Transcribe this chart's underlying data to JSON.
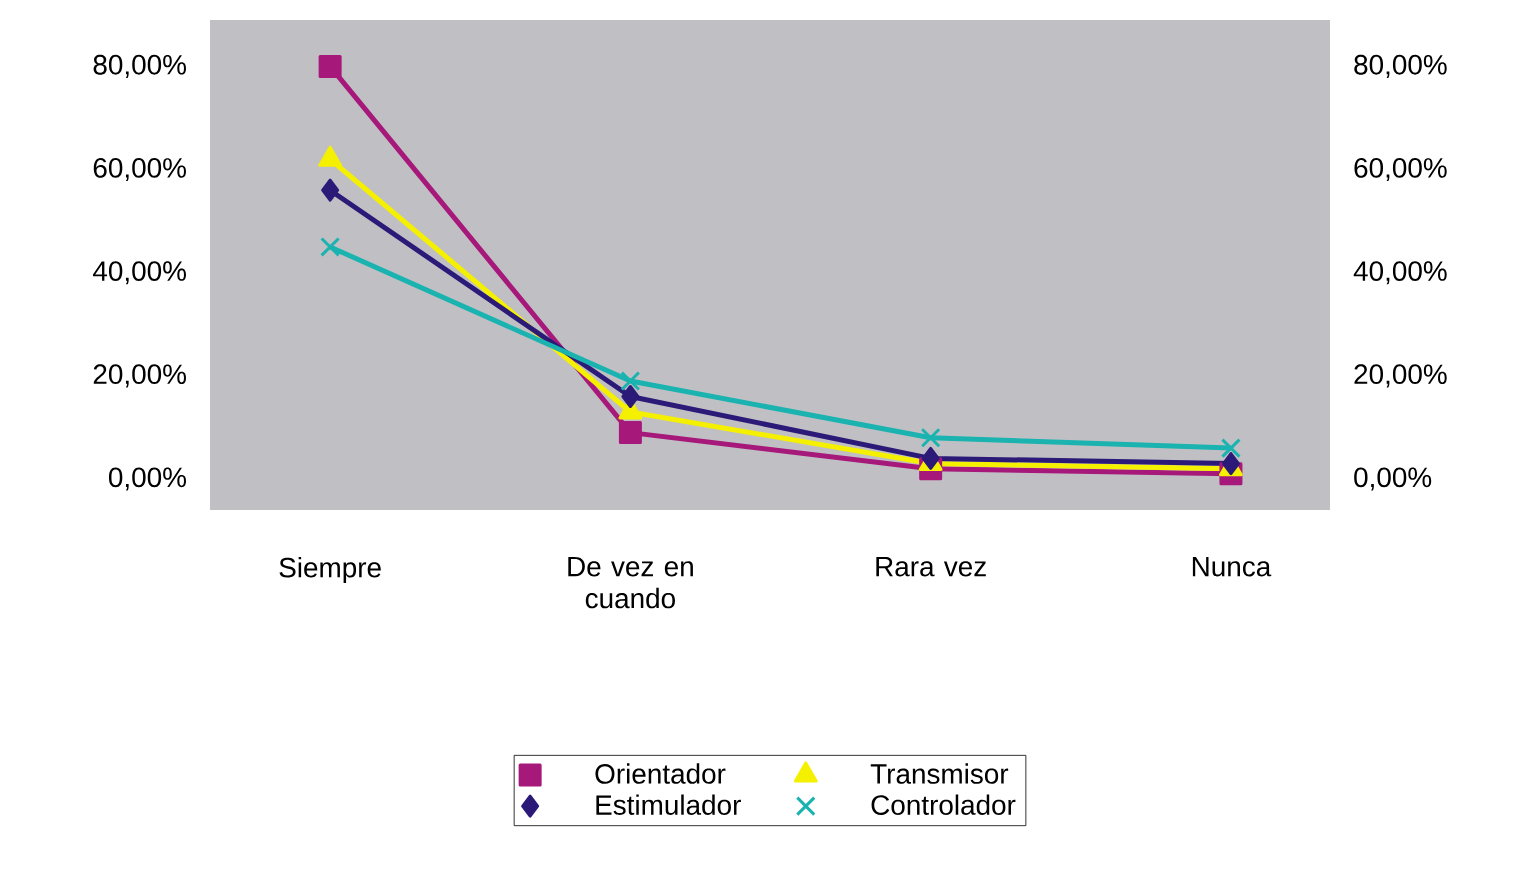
{
  "chart_data": {
    "type": "line",
    "categories": [
      "Siempre",
      "De vez en cuando",
      "Rara vez",
      "Nunca"
    ],
    "series": [
      {
        "name": "Orientador",
        "color": "#a6197a",
        "marker": "square",
        "values": [
          80,
          9,
          2,
          1
        ]
      },
      {
        "name": "Transmisor",
        "color": "#f5f000",
        "marker": "triangle",
        "values": [
          62,
          13,
          3,
          2
        ]
      },
      {
        "name": "Estimulador",
        "color": "#2b1a78",
        "marker": "diamond",
        "values": [
          56,
          16,
          4,
          3
        ]
      },
      {
        "name": "Controlador",
        "color": "#1ab3b0",
        "marker": "cross",
        "values": [
          45,
          19,
          8,
          6
        ]
      }
    ],
    "ylim": [
      -6,
      89
    ],
    "yticks": [
      {
        "value": 0,
        "label": "0,00%"
      },
      {
        "value": 20,
        "label": "20,00%"
      },
      {
        "value": 40,
        "label": "40,00%"
      },
      {
        "value": 60,
        "label": "60,00%"
      },
      {
        "value": 80,
        "label": "80,00%"
      }
    ],
    "y2lim": [
      -6,
      89
    ],
    "y2ticks": [
      {
        "value": 0,
        "label": "0,00%"
      },
      {
        "value": 20,
        "label": "20,00%"
      },
      {
        "value": 40,
        "label": "40,00%"
      },
      {
        "value": 60,
        "label": "60,00%"
      },
      {
        "value": 80,
        "label": "80,00%"
      }
    ],
    "line_style": "solid",
    "legend": "bottom"
  }
}
